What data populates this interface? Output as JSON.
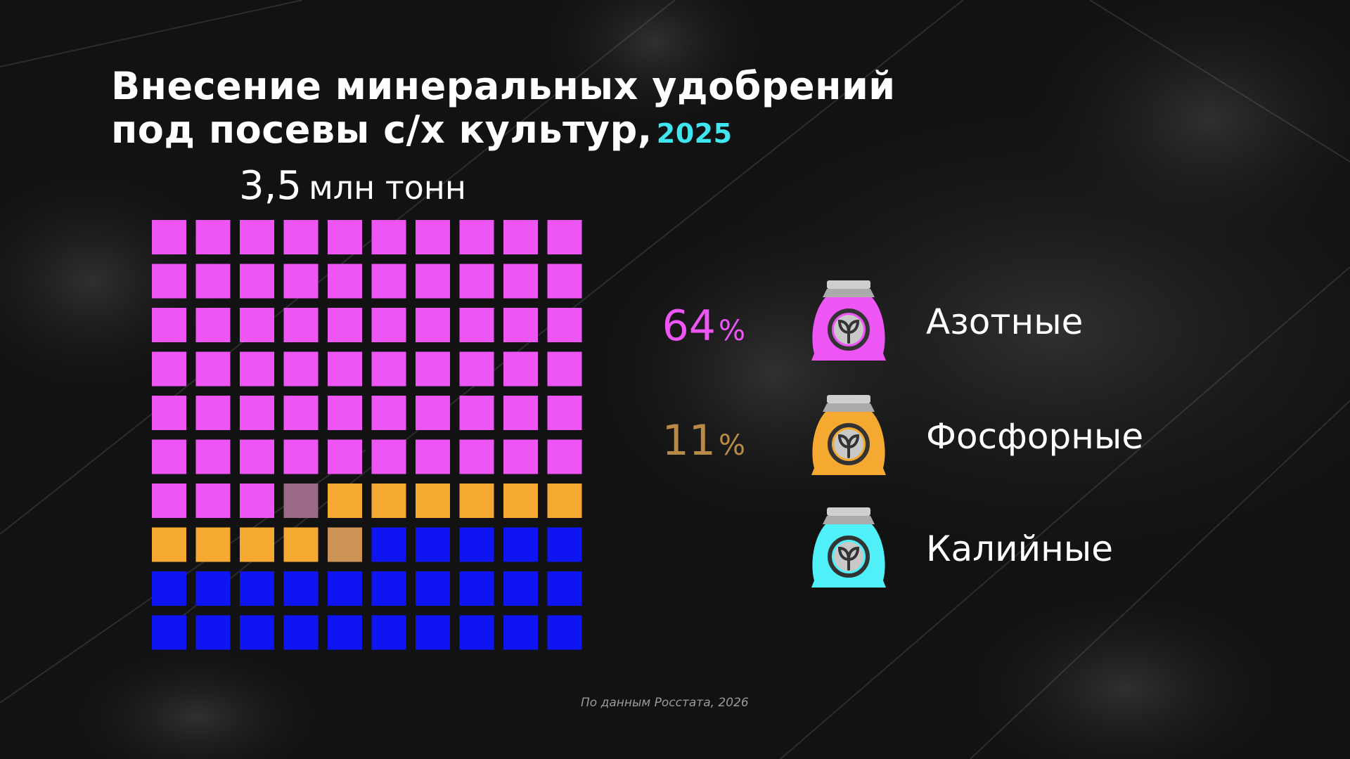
{
  "title": {
    "line1": "Внесение минеральных удобрений",
    "line2": "под посевы с/х культур,",
    "year": "2025"
  },
  "total": {
    "value": "3,5",
    "unit": "млн тонн"
  },
  "source": "По данным Росстата, 2026",
  "chart_data": {
    "type": "waffle",
    "grid": {
      "rows": 10,
      "cols": 10
    },
    "total_cells": 100,
    "series": [
      {
        "name": "Азотные",
        "value": 64,
        "label": "64",
        "unit": "%",
        "color": "#ee55f5",
        "icon": "fertilizer-bag-icon"
      },
      {
        "name": "Фосфорные",
        "value": 11,
        "label": "11",
        "unit": "%",
        "color": "#f5a931",
        "label_color": "#b88a45",
        "icon": "fertilizer-bag-icon"
      },
      {
        "name": "Калийные",
        "value": 25,
        "label": "",
        "unit": "",
        "color": "#0e14f2",
        "bag_color": "#4ff0f7",
        "icon": "fertilizer-bag-icon"
      }
    ],
    "transition_colors": [
      "#9a6a88",
      "#cc9355",
      "#3330cc"
    ],
    "legend_position": "right"
  }
}
